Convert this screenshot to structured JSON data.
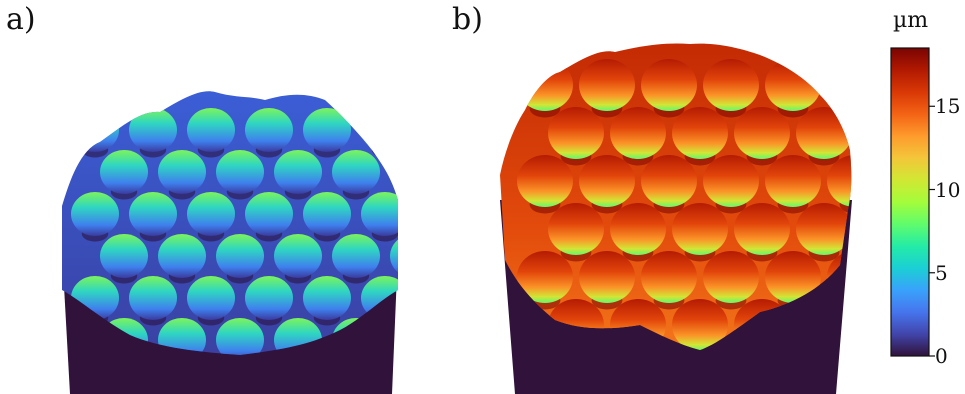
{
  "panels": [
    {
      "label": "a)"
    },
    {
      "label": "b)"
    }
  ],
  "colorbar": {
    "unit": "µm",
    "ticks": [
      "0",
      "5",
      "10",
      "15"
    ],
    "tick_values": [
      0,
      5,
      10,
      15
    ],
    "range": [
      0,
      18.5
    ],
    "colormap": [
      "#30123b",
      "#4145ab",
      "#4675ed",
      "#39a2fc",
      "#1bcfd4",
      "#24eca6",
      "#61fc6c",
      "#a4fc3b",
      "#d1e834",
      "#f3c63a",
      "#fe9b2d",
      "#f36315",
      "#d93806",
      "#b11901",
      "#7a0402"
    ]
  },
  "colors": {
    "base": "#30123b",
    "valley": "#2a0f38"
  }
}
